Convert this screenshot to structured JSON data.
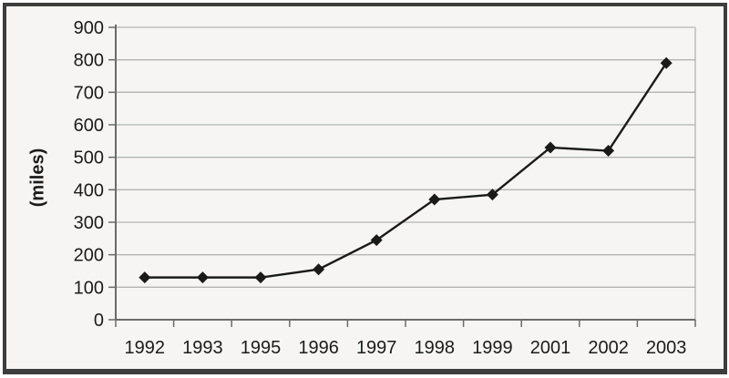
{
  "window": {
    "background_color": "#f6f5f3",
    "frame_border_color": "#3d3d3d"
  },
  "chart_data": {
    "type": "line",
    "title": "",
    "xlabel": "",
    "ylabel": "(miles)",
    "categories": [
      "1992",
      "1993",
      "1995",
      "1996",
      "1997",
      "1998",
      "1999",
      "2001",
      "2002",
      "2003"
    ],
    "series": [
      {
        "name": "miles",
        "values": [
          130,
          130,
          130,
          155,
          245,
          370,
          385,
          530,
          520,
          790
        ]
      }
    ],
    "ylim": [
      0,
      900
    ],
    "yticks": [
      0,
      100,
      200,
      300,
      400,
      500,
      600,
      700,
      800,
      900
    ],
    "grid": "horizontal",
    "legend": "none",
    "marker": "diamond",
    "line_color": "#1a1a1a",
    "marker_color": "#1a1a1a",
    "gridline_color": "#b3b3b3",
    "axis_color": "#6b6b6b",
    "text_color": "#1b1b1b"
  }
}
